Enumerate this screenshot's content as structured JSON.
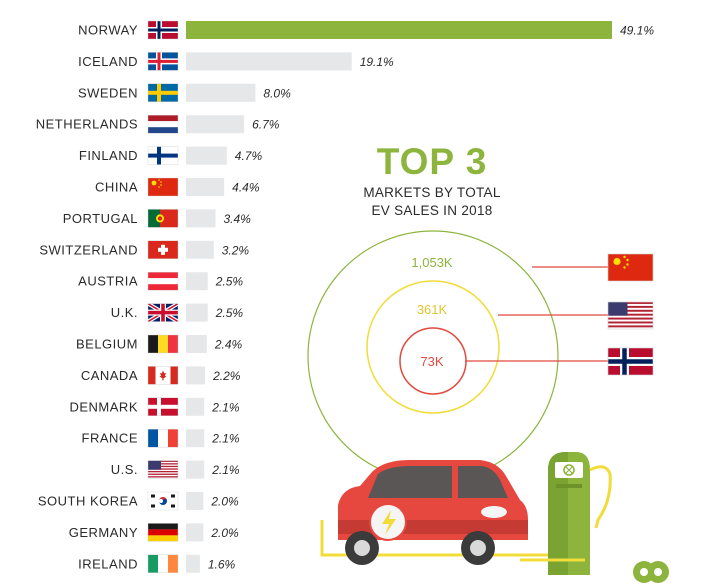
{
  "colors": {
    "highlight_bar": "#8db53d",
    "bar": "#e6e7e9",
    "ring_outer": "#8db53d",
    "ring_middle": "#f1dc3a",
    "ring_inner": "#e04a3f",
    "car_body": "#e6473f",
    "charger": "#8db53d"
  },
  "chart_data": {
    "type": "bar",
    "orientation": "horizontal",
    "categories": [
      "NORWAY",
      "ICELAND",
      "SWEDEN",
      "NETHERLANDS",
      "FINLAND",
      "CHINA",
      "PORTUGAL",
      "SWITZERLAND",
      "AUSTRIA",
      "U.K.",
      "BELGIUM",
      "CANADA",
      "DENMARK",
      "FRANCE",
      "U.S.",
      "SOUTH KOREA",
      "GERMANY",
      "IRELAND"
    ],
    "values": [
      49.1,
      19.1,
      8.0,
      6.7,
      4.7,
      4.4,
      3.4,
      3.2,
      2.5,
      2.5,
      2.4,
      2.2,
      2.1,
      2.1,
      2.1,
      2.0,
      2.0,
      1.6
    ],
    "value_labels": [
      "49.1%",
      "19.1%",
      "8.0%",
      "6.7%",
      "4.7%",
      "4.4%",
      "3.4%",
      "3.2%",
      "2.5%",
      "2.5%",
      "2.4%",
      "2.2%",
      "2.1%",
      "2.1%",
      "2.1%",
      "2.0%",
      "2.0%",
      "1.6%"
    ],
    "flags": [
      "norway-flag-icon",
      "iceland-flag-icon",
      "sweden-flag-icon",
      "netherlands-flag-icon",
      "finland-flag-icon",
      "china-flag-icon",
      "portugal-flag-icon",
      "switzerland-flag-icon",
      "austria-flag-icon",
      "uk-flag-icon",
      "belgium-flag-icon",
      "canada-flag-icon",
      "denmark-flag-icon",
      "france-flag-icon",
      "us-flag-icon",
      "south-korea-flag-icon",
      "germany-flag-icon",
      "ireland-flag-icon"
    ],
    "highlight": "NORWAY",
    "title": "",
    "xlabel": "",
    "ylabel": "",
    "grid": false,
    "legend": "none"
  },
  "top3": {
    "title": "TOP 3",
    "subtitle_line1": "MARKETS BY TOTAL",
    "subtitle_line2": "EV SALES IN 2018",
    "markets": [
      {
        "label": "1,053K",
        "flag": "china-flag-icon",
        "ring": "outer"
      },
      {
        "label": "361K",
        "flag": "us-flag-icon",
        "ring": "middle"
      },
      {
        "label": "73K",
        "flag": "norway-flag-icon",
        "ring": "inner"
      }
    ]
  },
  "illustration": {
    "car": "electric-car-icon",
    "charger": "charging-station-icon",
    "logo": "brand-logo-icon"
  }
}
